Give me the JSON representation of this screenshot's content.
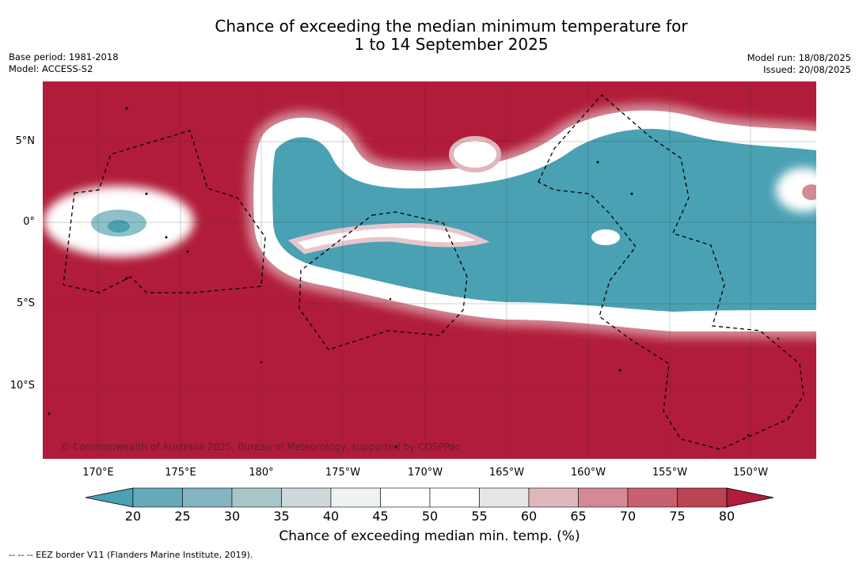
{
  "title_line1": "Chance of exceeding the median minimum temperature for",
  "title_line2": "1 to 14 September 2025",
  "base_period": "Base period: 1981-2018",
  "model": "Model: ACCESS-S2",
  "model_run": "Model run: 18/08/2025",
  "issued": "Issued: 20/08/2025",
  "lat_labels": [
    "5°N",
    "0°",
    "5°S",
    "10°S"
  ],
  "lon_labels": [
    "170°E",
    "175°E",
    "180°",
    "175°W",
    "170°W",
    "165°W",
    "160°W",
    "155°W",
    "150°W"
  ],
  "credit": "© Commonwealth of Australia 2025, Bureau of Meteorology, supported by COSPPac",
  "colorbar": {
    "ticks": [
      "20",
      "25",
      "30",
      "35",
      "40",
      "45",
      "50",
      "55",
      "60",
      "65",
      "70",
      "75",
      "80"
    ],
    "label": "Chance of exceeding median min. temp. (%)",
    "colors": [
      "#4aa1b3",
      "#66a9b8",
      "#85b5c0",
      "#a8c5c9",
      "#cfd8da",
      "#eef2f3",
      "#ffffff",
      "#ffffff",
      "#e6e6e6",
      "#e0b6bd",
      "#d48a96",
      "#c8606f",
      "#b94452",
      "#b11c3a"
    ]
  },
  "footer": "--  --  -- EEZ border V11 (Flanders Marine Institute, 2019).",
  "colors": {
    "warm": "#b11c3a",
    "cool": "#4aa1b3"
  }
}
